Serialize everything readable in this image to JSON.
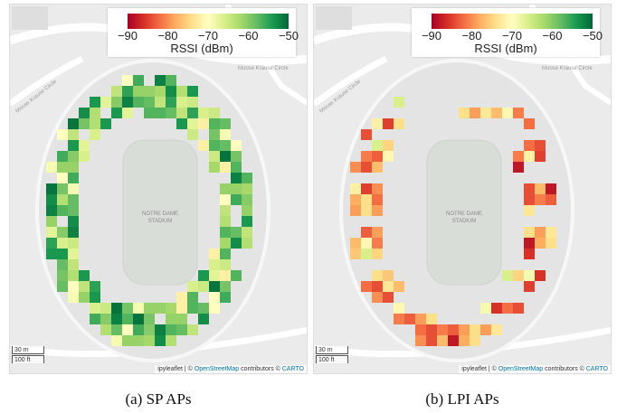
{
  "colors": {
    "map_background": "#ebebeb",
    "road": "#ffffff",
    "stadium_bowl": "#e4e4e4",
    "field": "#d9ddd8",
    "colormap": [
      "#a50026",
      "#d73027",
      "#f46d43",
      "#fdae61",
      "#fee08b",
      "#ffffbf",
      "#d9ef8b",
      "#a6d96a",
      "#66bd63",
      "#1a9850",
      "#006837"
    ]
  },
  "panels": [
    {
      "id": "sp",
      "street_label_1": "Moose Krause Circle",
      "street_label_2": "Moose Krause Circle",
      "stadium_label_line1": "NOTRE DAME",
      "stadium_label_line2": "STADIUM",
      "legend": {
        "ticks": [
          "−90",
          "−80",
          "−70",
          "−60",
          "−50"
        ],
        "title": "RSSI (dBm)"
      },
      "scale": {
        "metric": "30 m",
        "imperial": "100 ft"
      },
      "attribution": {
        "prefix": "ipyleaflet | © ",
        "osm": "OpenStreetMap",
        "middle": " contributors © ",
        "carto": "CARTO"
      },
      "caption": "(a) SP APs"
    },
    {
      "id": "lpi",
      "street_label_1": "Moose Krause Circle",
      "street_label_2": "Moose Krause Circle",
      "stadium_label_line1": "NOTRE DAME",
      "stadium_label_line2": "STADIUM",
      "legend": {
        "ticks": [
          "−90",
          "−80",
          "−70",
          "−60",
          "−50"
        ],
        "title": "RSSI (dBm)"
      },
      "scale": {
        "metric": "30 m",
        "imperial": "100 ft"
      },
      "attribution": {
        "prefix": "ipyleaflet | © ",
        "osm": "OpenStreetMap",
        "middle": " contributors © ",
        "carto": "CARTO"
      },
      "caption": "(b) LPI APs"
    }
  ],
  "colorbar_range_dbm": [
    -90,
    -50
  ],
  "heatmap_cell_rssi_dbm": {
    "sp": [
      -58,
      -54,
      -61,
      -66,
      -52,
      -57,
      -63,
      -69,
      -55,
      -60,
      -72,
      -53,
      -59,
      -64,
      -56,
      -67,
      -62,
      -51,
      -58,
      -70,
      -54,
      -61,
      -65,
      -57
    ],
    "lpi": [
      -82,
      -76,
      -84,
      -71,
      -79,
      -86,
      -74,
      -80,
      -77,
      -83,
      -69,
      -78,
      -85,
      -73,
      -81,
      -75,
      -88,
      -72,
      -79,
      -84,
      -66,
      -77,
      -81,
      -74
    ]
  }
}
